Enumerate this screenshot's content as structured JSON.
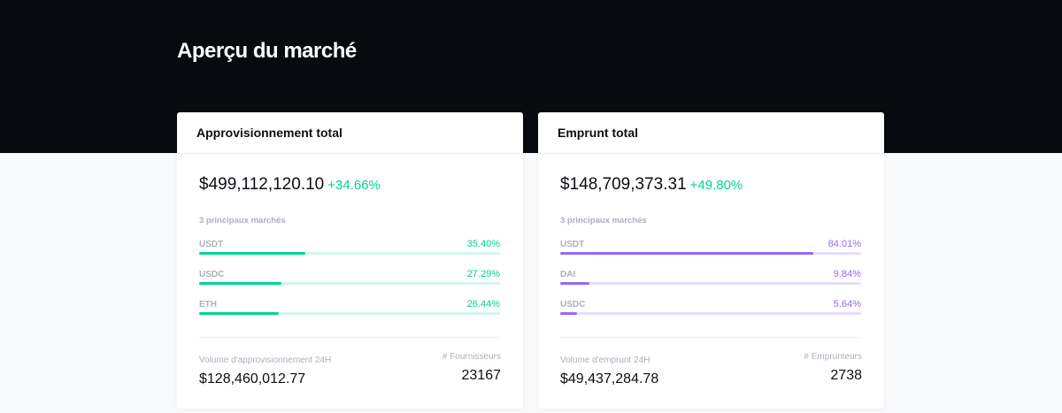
{
  "page": {
    "title": "Aperçu du marché"
  },
  "supply": {
    "title": "Approvisionnement total",
    "amount": "$499,112,120.10",
    "change": "+34.66%",
    "markets_label": "3 principaux marchés",
    "markets": [
      {
        "name": "USDT",
        "pct": "35.40%",
        "value": 35.4
      },
      {
        "name": "USDC",
        "pct": "27.29%",
        "value": 27.29
      },
      {
        "name": "ETH",
        "pct": "26.44%",
        "value": 26.44
      }
    ],
    "volume_label": "Volume d'approvisionnement 24H",
    "volume": "$128,460,012.77",
    "count_label": "# Fournisseurs",
    "count": "23167",
    "color": "#00d395",
    "track_color": "#d4f7ea"
  },
  "borrow": {
    "title": "Emprunt total",
    "amount": "$148,709,373.31",
    "change": "+49.80%",
    "markets_label": "3 principaux marchés",
    "markets": [
      {
        "name": "USDT",
        "pct": "84.01%",
        "value": 84.01
      },
      {
        "name": "DAI",
        "pct": "9.84%",
        "value": 9.84
      },
      {
        "name": "USDC",
        "pct": "5.64%",
        "value": 5.64
      }
    ],
    "volume_label": "Volume d'emprunt 24H",
    "volume": "$49,437,284.78",
    "count_label": "# Emprunteurs",
    "count": "2738",
    "color": "#9669ed",
    "track_color": "#e6defb"
  },
  "change_color": "#00d395"
}
